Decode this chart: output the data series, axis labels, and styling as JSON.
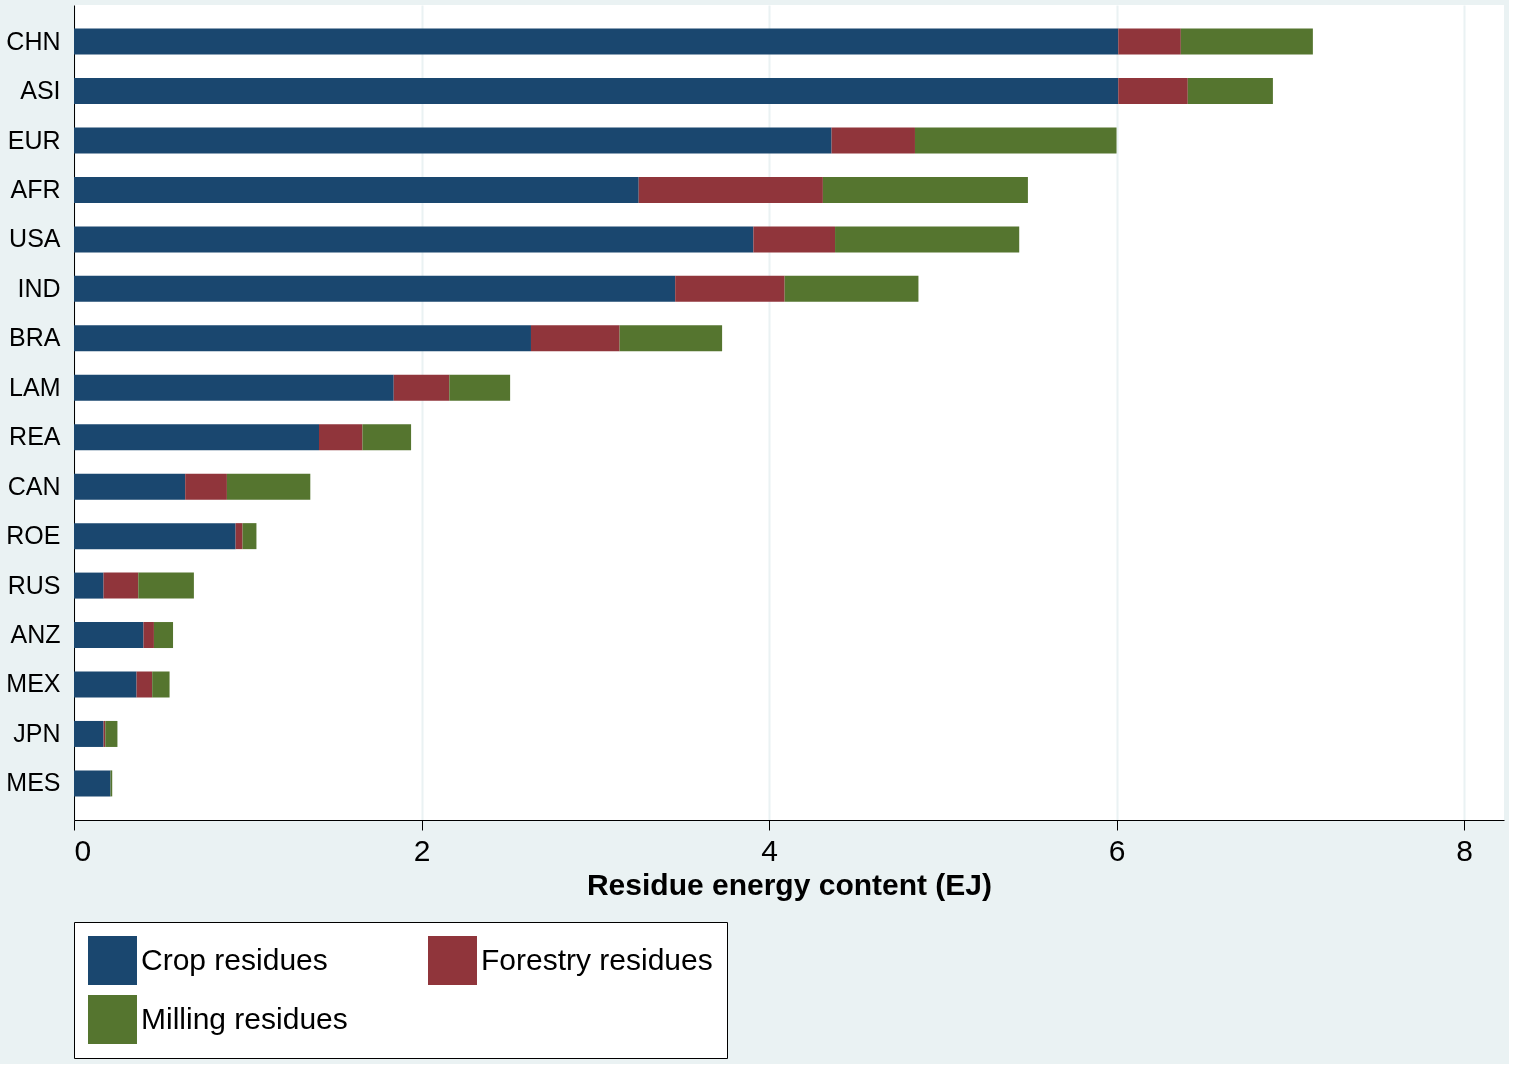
{
  "chart_data": {
    "type": "bar",
    "orientation": "horizontal",
    "stacked": true,
    "xlabel": "Residue energy content (EJ)",
    "categories": [
      "CHN",
      "ASI",
      "EUR",
      "AFR",
      "USA",
      "IND",
      "BRA",
      "LAM",
      "REA",
      "CAN",
      "ROE",
      "RUS",
      "ANZ",
      "MEX",
      "JPN",
      "MES"
    ],
    "series": [
      {
        "name": "Crop residues",
        "color": "#1a476f",
        "values": [
          6.01,
          6.01,
          4.36,
          3.25,
          3.91,
          3.46,
          2.63,
          1.84,
          1.41,
          0.64,
          0.93,
          0.17,
          0.4,
          0.36,
          0.17,
          0.21
        ]
      },
      {
        "name": "Forestry residues",
        "color": "#90353b",
        "values": [
          0.36,
          0.4,
          0.48,
          1.06,
          0.47,
          0.63,
          0.51,
          0.32,
          0.25,
          0.24,
          0.04,
          0.2,
          0.06,
          0.09,
          0.01,
          0
        ]
      },
      {
        "name": "Milling residues",
        "color": "#55752f",
        "values": [
          0.76,
          0.49,
          1.16,
          1.18,
          1.06,
          0.77,
          0.59,
          0.35,
          0.28,
          0.48,
          0.08,
          0.32,
          0.11,
          0.1,
          0.07,
          0.01
        ]
      }
    ],
    "xlim": [
      0,
      8.23
    ],
    "xticks": [
      0,
      2,
      4,
      6,
      8
    ],
    "grid": "x",
    "legend": "bottom"
  }
}
